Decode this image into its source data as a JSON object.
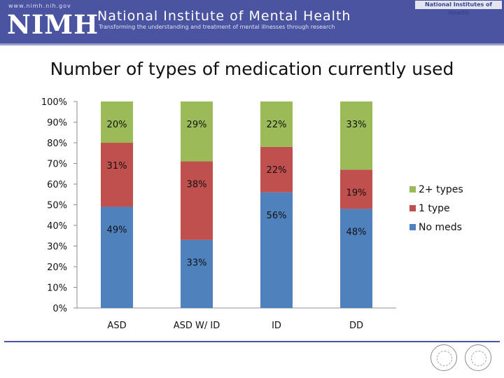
{
  "header": {
    "website": "www.nimh.nih.gov",
    "logo_text": "NIMH",
    "institute_name": "National Institute of Mental Health",
    "tagline": "Transforming the understanding and treatment of mental illnesses through research",
    "parent_tag": "National Institutes of Health",
    "brand_color": "#4a54a1"
  },
  "chart_data": {
    "type": "bar",
    "stacked": true,
    "title": "Number of types of medication currently used",
    "categories": [
      "ASD",
      "ASD W/ ID",
      "ID",
      "DD"
    ],
    "series": [
      {
        "name": "No meds",
        "color": "#4f81bd",
        "values": [
          49,
          33,
          56,
          48
        ],
        "labels": [
          "49%",
          "33%",
          "56%",
          "48%"
        ]
      },
      {
        "name": "1 type",
        "color": "#c0504d",
        "values": [
          31,
          38,
          22,
          19
        ],
        "labels": [
          "31%",
          "38%",
          "22%",
          "19%"
        ]
      },
      {
        "name": "2+ types",
        "color": "#9bbb59",
        "values": [
          20,
          29,
          22,
          33
        ],
        "labels": [
          "20%",
          "29%",
          "22%",
          "33%"
        ]
      }
    ],
    "ylim": [
      0,
      100
    ],
    "yticks": [
      "0%",
      "10%",
      "20%",
      "30%",
      "40%",
      "50%",
      "60%",
      "70%",
      "80%",
      "90%",
      "100%"
    ],
    "legend_position": "right",
    "grid": false
  },
  "icons": [
    "hhs-seal-icon",
    "hhs-eagle-icon"
  ]
}
